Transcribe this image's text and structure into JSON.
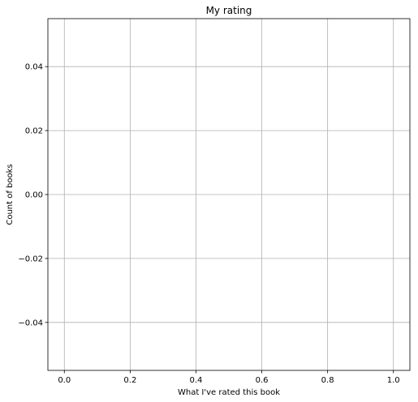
{
  "chart_data": {
    "type": "bar",
    "title": "My rating",
    "xlabel": "What I've rated this book",
    "ylabel": "Count of books",
    "xlim": [
      -0.05,
      1.05
    ],
    "ylim": [
      -0.055,
      0.055
    ],
    "xticks": [
      0.0,
      0.2,
      0.4,
      0.6,
      0.8,
      1.0
    ],
    "xtick_labels": [
      "0.0",
      "0.2",
      "0.4",
      "0.6",
      "0.8",
      "1.0"
    ],
    "yticks": [
      -0.04,
      -0.02,
      0.0,
      0.02,
      0.04
    ],
    "ytick_labels": [
      "−0.04",
      "−0.02",
      "0.00",
      "0.02",
      "0.04"
    ],
    "grid": true,
    "categories": [],
    "values": [],
    "colors": {
      "grid": "#b0b0b0",
      "axes": "#000000",
      "background": "#ffffff"
    }
  }
}
